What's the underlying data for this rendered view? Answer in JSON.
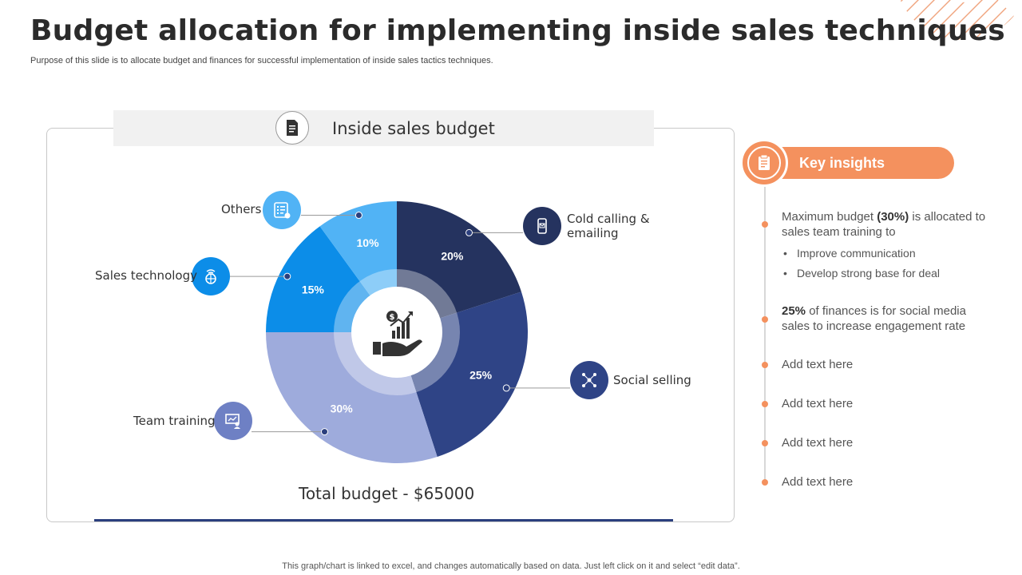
{
  "page": {
    "title": "Budget allocation for implementing inside sales techniques",
    "subtitle": "Purpose of this slide is to allocate budget and finances for successful implementation of inside sales tactics techniques.",
    "footer": "This graph/chart is linked to excel, and changes automatically based on data. Just left click on it and select “edit data”."
  },
  "panel": {
    "header_title": "Inside sales budget",
    "total": "Total budget - $65000"
  },
  "chart_data": {
    "type": "pie",
    "title": "Inside sales budget",
    "center_icon": "money-hand-growth-icon",
    "slices": [
      {
        "label": "Cold calling & emailing",
        "value": 20,
        "display": "20%",
        "color": "#25335f",
        "icon": "phone-mail-icon"
      },
      {
        "label": "Social selling",
        "value": 25,
        "display": "25%",
        "color": "#2f4486",
        "icon": "network-icon"
      },
      {
        "label": "Team training",
        "value": 30,
        "display": "30%",
        "color": "#9eabdc",
        "icon": "presentation-icon"
      },
      {
        "label": "Sales technology",
        "value": 15,
        "display": "15%",
        "color": "#0c8de8",
        "icon": "globe-signal-icon"
      },
      {
        "label": "Others",
        "value": 10,
        "display": "10%",
        "color": "#51b3f5",
        "icon": "checklist-icon"
      }
    ]
  },
  "labels": {
    "cold_calling_line1": "Cold calling &",
    "cold_calling_line2": "emailing",
    "social_selling": "Social selling",
    "team_training": "Team training",
    "sales_technology": "Sales technology",
    "others": "Others"
  },
  "insights": {
    "title": "Key insights",
    "item1_pre": "Maximum budget ",
    "item1_bold": "(30%)",
    "item1_post": " is allocated to sales team training to",
    "bullets": [
      "Improve communication",
      "Develop strong base for deal"
    ],
    "item2_bold": "25%",
    "item2_post": " of finances is for social media sales to increase engagement rate",
    "placeholders": [
      "Add text here",
      "Add text here",
      "Add text here",
      "Add text here"
    ]
  },
  "colors": {
    "accent": "#f4915e",
    "navy": "#25335f",
    "bar": "#2b3f7e"
  }
}
